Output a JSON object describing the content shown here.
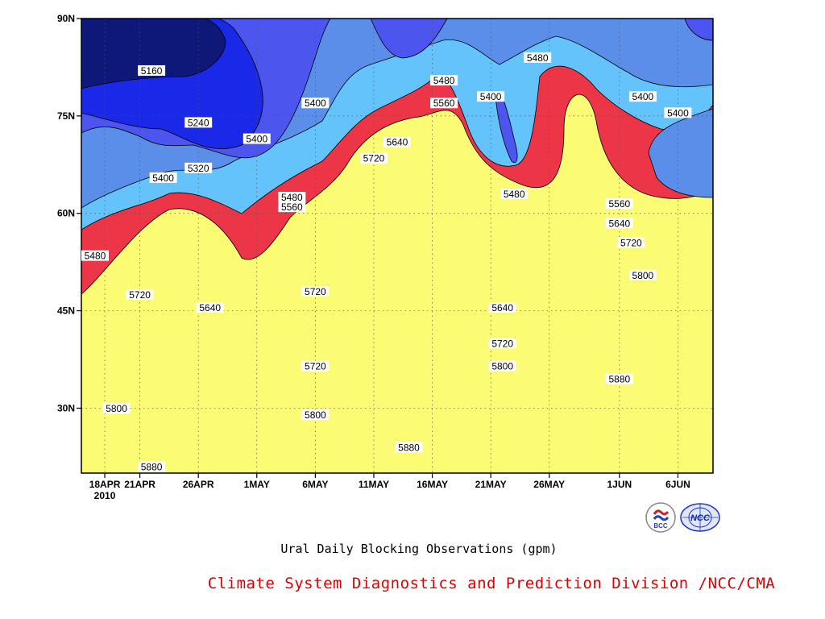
{
  "chart_data": {
    "type": "heatmap",
    "subtype": "filled-contour",
    "title": "Ural Daily Blocking Observations (gpm)",
    "xlabel": "",
    "ylabel": "",
    "x_ticks": [
      "18APR",
      "21APR",
      "26APR",
      "1MAY",
      "6MAY",
      "11MAY",
      "16MAY",
      "21MAY",
      "26MAY",
      "1JUN",
      "6JUN"
    ],
    "x_year_label": "2010",
    "x_range": [
      "2010-04-16",
      "2010-06-09"
    ],
    "y_ticks": [
      "30N",
      "45N",
      "60N",
      "75N",
      "90N"
    ],
    "y_range": [
      20,
      90
    ],
    "grid": "dotted",
    "contour_levels": [
      5160,
      5240,
      5320,
      5400,
      5480,
      5560,
      5640,
      5720,
      5800,
      5880
    ],
    "band_colors": [
      "#0e1878",
      "#1a28e8",
      "#4c55ee",
      "#5a8ee8",
      "#64c3fb",
      "#fbfb74",
      "#fee3a4",
      "#fea06f",
      "#fb7448",
      "#f56d7a",
      "#ed3548"
    ],
    "contour_labels": [
      {
        "text": "5160",
        "date": "2010-04-22",
        "lat": 82
      },
      {
        "text": "5240",
        "date": "2010-04-26",
        "lat": 74
      },
      {
        "text": "5320",
        "date": "2010-04-26",
        "lat": 67
      },
      {
        "text": "5400",
        "date": "2010-04-23",
        "lat": 65.5
      },
      {
        "text": "5400",
        "date": "2010-05-01",
        "lat": 71.5
      },
      {
        "text": "5400",
        "date": "2010-05-06",
        "lat": 77
      },
      {
        "text": "5480",
        "date": "2010-05-04",
        "lat": 62.5
      },
      {
        "text": "5560",
        "date": "2010-05-04",
        "lat": 61
      },
      {
        "text": "5480",
        "date": "2010-04-16",
        "lat": 53.5
      },
      {
        "text": "5720",
        "date": "2010-04-21",
        "lat": 47.5
      },
      {
        "text": "5640",
        "date": "2010-04-27",
        "lat": 45.5
      },
      {
        "text": "5720",
        "date": "2010-05-06",
        "lat": 48
      },
      {
        "text": "5720",
        "date": "2010-05-06",
        "lat": 36.5
      },
      {
        "text": "5800",
        "date": "2010-04-19",
        "lat": 30
      },
      {
        "text": "5800",
        "date": "2010-05-06",
        "lat": 29
      },
      {
        "text": "5880",
        "date": "2010-04-22",
        "lat": 21
      },
      {
        "text": "5880",
        "date": "2010-05-14",
        "lat": 24
      },
      {
        "text": "5720",
        "date": "2010-05-11",
        "lat": 68.5
      },
      {
        "text": "5640",
        "date": "2010-05-13",
        "lat": 71
      },
      {
        "text": "5560",
        "date": "2010-05-17",
        "lat": 77
      },
      {
        "text": "5480",
        "date": "2010-05-17",
        "lat": 80.5
      },
      {
        "text": "5400",
        "date": "2010-05-21",
        "lat": 78
      },
      {
        "text": "5480",
        "date": "2010-05-23",
        "lat": 63
      },
      {
        "text": "5480",
        "date": "2010-05-25",
        "lat": 84
      },
      {
        "text": "5640",
        "date": "2010-05-22",
        "lat": 45.5
      },
      {
        "text": "5720",
        "date": "2010-05-22",
        "lat": 40
      },
      {
        "text": "5800",
        "date": "2010-05-22",
        "lat": 36.5
      },
      {
        "text": "5880",
        "date": "2010-06-01",
        "lat": 34.5
      },
      {
        "text": "5800",
        "date": "2010-06-03",
        "lat": 50.5
      },
      {
        "text": "5720",
        "date": "2010-06-02",
        "lat": 55.5
      },
      {
        "text": "5640",
        "date": "2010-06-01",
        "lat": 58.5
      },
      {
        "text": "5560",
        "date": "2010-06-01",
        "lat": 61.5
      },
      {
        "text": "5400",
        "date": "2010-06-03",
        "lat": 78
      },
      {
        "text": "5400",
        "date": "2010-06-06",
        "lat": 75.5
      }
    ]
  },
  "caption": "Ural Daily Blocking Observations (gpm)",
  "credit": "Climate System Diagnostics and Prediction Division /NCC/CMA",
  "credit_color": "#e00000",
  "logos": [
    {
      "icon": "bcc-logo",
      "label": "BCC"
    },
    {
      "icon": "ncc-logo",
      "label": "NCC"
    }
  ]
}
